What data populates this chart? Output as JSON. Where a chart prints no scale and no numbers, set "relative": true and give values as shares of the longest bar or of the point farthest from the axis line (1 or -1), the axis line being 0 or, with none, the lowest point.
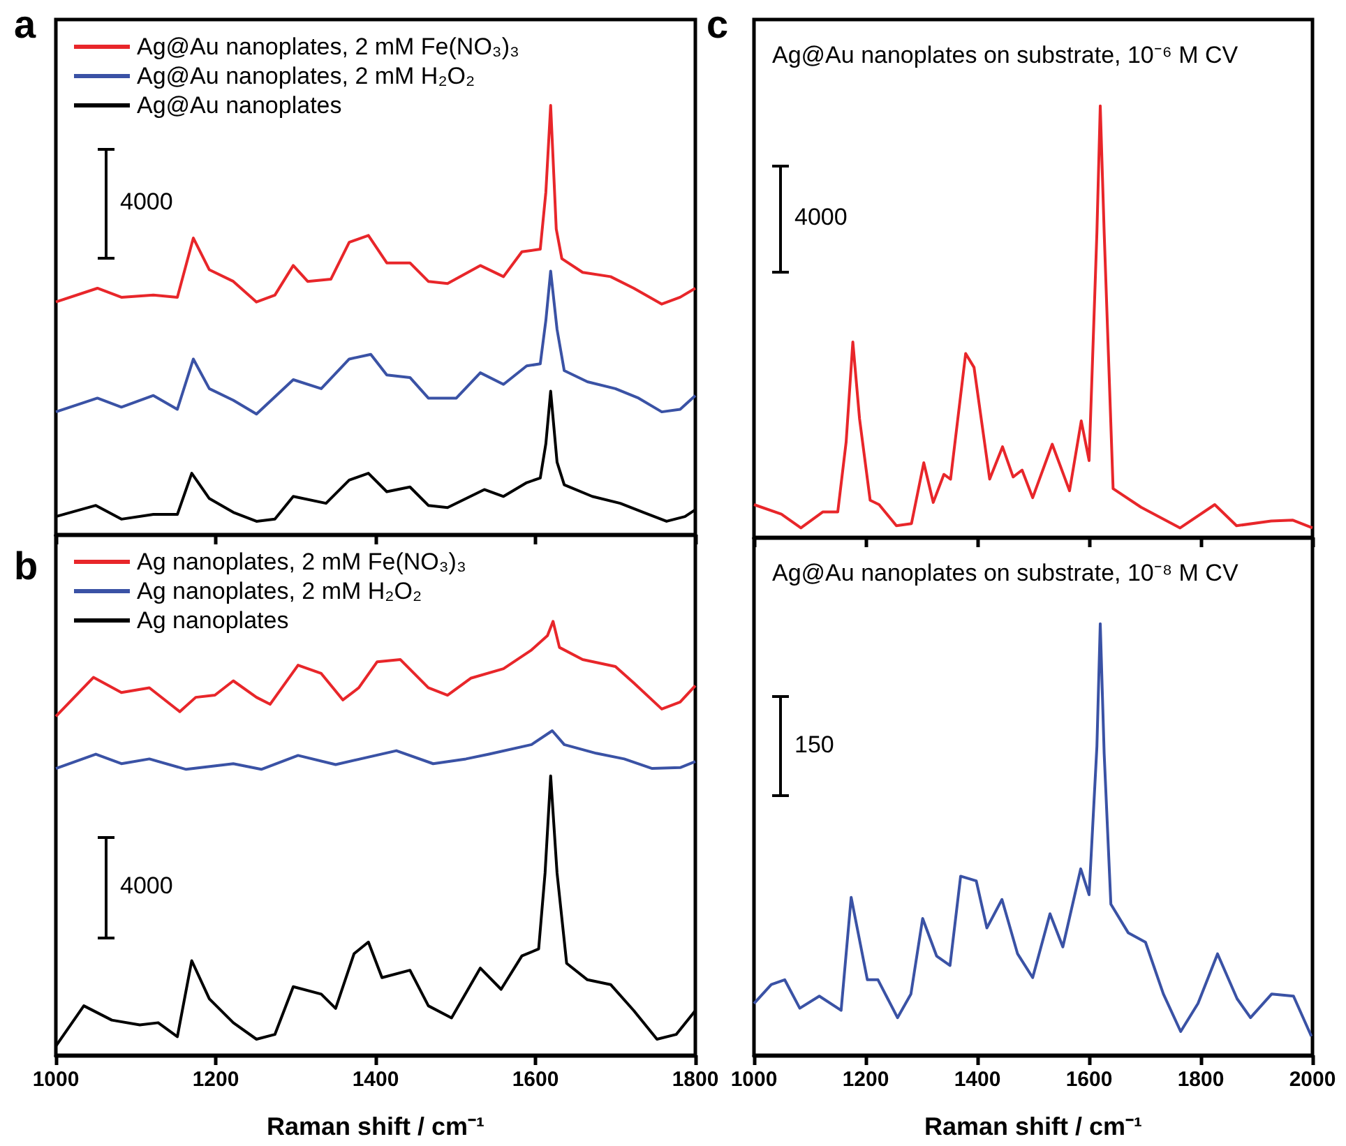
{
  "chart_data": [
    {
      "type": "line",
      "relative": true,
      "marker": "none",
      "legend": "top left",
      "xlim": [
        1000,
        1800
      ],
      "xticks": [
        1000,
        1200,
        1400,
        1600,
        1800
      ],
      "tick_labels": false,
      "annotations": [
        "a",
        "4000"
      ],
      "series": [
        {
          "name": "Ag@Au nanoplates, 2 mM Fe(NO₃)₃",
          "color": "#e8262a",
          "x": [
            1000,
            1052,
            1082,
            1122,
            1152,
            1172,
            1192,
            1222,
            1251,
            1274,
            1297,
            1315,
            1344,
            1367,
            1391,
            1414,
            1443,
            1466,
            1490,
            1531,
            1560,
            1583,
            1606,
            1613,
            1619,
            1626,
            1633,
            1659,
            1694,
            1723,
            1758,
            1781,
            1800
          ],
          "values": [
            0.542,
            0.574,
            0.553,
            0.558,
            0.553,
            0.691,
            0.617,
            0.59,
            0.542,
            0.558,
            0.627,
            0.59,
            0.595,
            0.681,
            0.697,
            0.633,
            0.633,
            0.59,
            0.585,
            0.627,
            0.601,
            0.659,
            0.665,
            0.798,
            1.0,
            0.712,
            0.643,
            0.611,
            0.601,
            0.574,
            0.537,
            0.553,
            0.574
          ]
        },
        {
          "name": "Ag@Au nanoplates, 2 mM H₂O₂",
          "color": "#3a52a5",
          "x": [
            1000,
            1052,
            1082,
            1122,
            1152,
            1172,
            1192,
            1222,
            1251,
            1297,
            1332,
            1367,
            1394,
            1414,
            1443,
            1466,
            1501,
            1531,
            1560,
            1589,
            1606,
            1613,
            1619,
            1627,
            1636,
            1665,
            1700,
            1729,
            1758,
            1781,
            1800
          ],
          "values": [
            0.286,
            0.318,
            0.297,
            0.324,
            0.292,
            0.409,
            0.34,
            0.313,
            0.281,
            0.361,
            0.34,
            0.409,
            0.42,
            0.372,
            0.366,
            0.318,
            0.318,
            0.377,
            0.35,
            0.393,
            0.398,
            0.499,
            0.614,
            0.478,
            0.382,
            0.356,
            0.34,
            0.318,
            0.286,
            0.292,
            0.324
          ]
        },
        {
          "name": "Ag@Au nanoplates",
          "color": "#000000",
          "x": [
            1000,
            1050,
            1082,
            1122,
            1152,
            1170,
            1192,
            1222,
            1251,
            1274,
            1297,
            1338,
            1367,
            1391,
            1414,
            1443,
            1466,
            1490,
            1536,
            1560,
            1589,
            1606,
            1613,
            1619,
            1627,
            1636,
            1671,
            1706,
            1735,
            1764,
            1787,
            1800
          ],
          "values": [
            0.042,
            0.068,
            0.036,
            0.047,
            0.047,
            0.143,
            0.084,
            0.052,
            0.031,
            0.036,
            0.089,
            0.073,
            0.127,
            0.143,
            0.1,
            0.111,
            0.068,
            0.063,
            0.105,
            0.089,
            0.121,
            0.132,
            0.212,
            0.334,
            0.169,
            0.116,
            0.089,
            0.073,
            0.052,
            0.031,
            0.042,
            0.058
          ]
        }
      ]
    },
    {
      "type": "line",
      "relative": true,
      "marker": "none",
      "legend": "top left",
      "xlim": [
        1000,
        1800
      ],
      "xticks": [
        1000,
        1200,
        1400,
        1600,
        1800
      ],
      "tick_labels": "x",
      "xlabel": "Raman shift / cm⁻¹",
      "annotations": [
        "b",
        "4000"
      ],
      "series": [
        {
          "name": "Ag nanoplates, 2 mM Fe(NO₃)₃",
          "color": "#e8262a",
          "x": [
            1000,
            1047,
            1082,
            1117,
            1155,
            1175,
            1199,
            1222,
            1251,
            1268,
            1303,
            1332,
            1359,
            1379,
            1402,
            1431,
            1466,
            1490,
            1519,
            1560,
            1595,
            1615,
            1622,
            1630,
            1659,
            1700,
            1723,
            1758,
            1781,
            1800
          ],
          "values": [
            0.781,
            0.871,
            0.836,
            0.847,
            0.792,
            0.825,
            0.83,
            0.863,
            0.825,
            0.809,
            0.899,
            0.88,
            0.819,
            0.847,
            0.907,
            0.912,
            0.847,
            0.83,
            0.869,
            0.891,
            0.934,
            0.967,
            1.0,
            0.94,
            0.912,
            0.896,
            0.858,
            0.798,
            0.814,
            0.852
          ]
        },
        {
          "name": "Ag nanoplates, 2 mM H₂O₂",
          "color": "#3a52a5",
          "x": [
            1000,
            1050,
            1082,
            1117,
            1163,
            1222,
            1257,
            1303,
            1350,
            1426,
            1472,
            1513,
            1542,
            1595,
            1621,
            1636,
            1676,
            1711,
            1746,
            1781,
            1800
          ],
          "values": [
            0.661,
            0.694,
            0.672,
            0.683,
            0.659,
            0.672,
            0.659,
            0.691,
            0.67,
            0.702,
            0.672,
            0.683,
            0.694,
            0.716,
            0.748,
            0.716,
            0.696,
            0.683,
            0.661,
            0.663,
            0.677
          ]
        },
        {
          "name": "Ag nanoplates",
          "color": "#000000",
          "x": [
            1000,
            1035,
            1070,
            1105,
            1128,
            1152,
            1170,
            1192,
            1222,
            1251,
            1274,
            1297,
            1332,
            1350,
            1373,
            1391,
            1408,
            1443,
            1466,
            1495,
            1531,
            1557,
            1583,
            1604,
            1612,
            1619,
            1627,
            1639,
            1665,
            1694,
            1723,
            1752,
            1776,
            1800
          ],
          "values": [
            0.021,
            0.114,
            0.081,
            0.07,
            0.075,
            0.043,
            0.218,
            0.13,
            0.075,
            0.037,
            0.048,
            0.158,
            0.141,
            0.108,
            0.234,
            0.261,
            0.179,
            0.196,
            0.114,
            0.086,
            0.201,
            0.152,
            0.229,
            0.245,
            0.42,
            0.644,
            0.42,
            0.212,
            0.174,
            0.163,
            0.103,
            0.037,
            0.048,
            0.103
          ]
        }
      ]
    },
    {
      "type": "line",
      "relative": true,
      "marker": "none",
      "title": "Ag@Au nanoplates on substrate, 10⁻⁶ M CV",
      "xlim": [
        1000,
        2000
      ],
      "xticks": [
        1000,
        1200,
        1400,
        1600,
        1800,
        2000
      ],
      "tick_labels": false,
      "annotations": [
        "c",
        "4000"
      ],
      "series": [
        {
          "color": "#e8262a",
          "x": [
            1000,
            1049,
            1084,
            1123,
            1150,
            1165,
            1177,
            1189,
            1208,
            1224,
            1255,
            1282,
            1304,
            1321,
            1340,
            1352,
            1379,
            1394,
            1422,
            1445,
            1464,
            1480,
            1499,
            1534,
            1565,
            1586,
            1600,
            1614,
            1620,
            1627,
            1643,
            1693,
            1763,
            1825,
            1864,
            1926,
            1965,
            2000
          ],
          "values": [
            0.076,
            0.054,
            0.022,
            0.059,
            0.059,
            0.221,
            0.453,
            0.275,
            0.086,
            0.076,
            0.027,
            0.032,
            0.173,
            0.081,
            0.146,
            0.135,
            0.426,
            0.394,
            0.135,
            0.21,
            0.14,
            0.156,
            0.092,
            0.216,
            0.108,
            0.27,
            0.178,
            0.707,
            1.0,
            0.707,
            0.113,
            0.07,
            0.022,
            0.076,
            0.027,
            0.038,
            0.04,
            0.022
          ]
        }
      ]
    },
    {
      "type": "line",
      "relative": true,
      "marker": "none",
      "title": "Ag@Au nanoplates on substrate, 10⁻⁸ M CV",
      "xlim": [
        1000,
        2000
      ],
      "xticks": [
        1000,
        1200,
        1400,
        1600,
        1800,
        2000
      ],
      "tick_labels": "x",
      "xlabel": "Raman shift / cm⁻¹",
      "annotations": [
        "150"
      ],
      "series": [
        {
          "color": "#3a52a5",
          "x": [
            1000,
            1031,
            1055,
            1082,
            1117,
            1156,
            1174,
            1203,
            1222,
            1257,
            1281,
            1302,
            1327,
            1351,
            1370,
            1398,
            1417,
            1444,
            1472,
            1499,
            1530,
            1553,
            1585,
            1600,
            1614,
            1620,
            1627,
            1639,
            1670,
            1701,
            1733,
            1764,
            1795,
            1830,
            1865,
            1889,
            1927,
            1966,
            1998
          ],
          "values": [
            0.12,
            0.164,
            0.175,
            0.109,
            0.137,
            0.104,
            0.366,
            0.175,
            0.175,
            0.087,
            0.142,
            0.317,
            0.23,
            0.208,
            0.415,
            0.404,
            0.295,
            0.361,
            0.235,
            0.18,
            0.328,
            0.251,
            0.432,
            0.372,
            0.716,
            1.0,
            0.699,
            0.35,
            0.284,
            0.262,
            0.142,
            0.055,
            0.12,
            0.235,
            0.131,
            0.087,
            0.142,
            0.137,
            0.044
          ]
        }
      ]
    }
  ]
}
